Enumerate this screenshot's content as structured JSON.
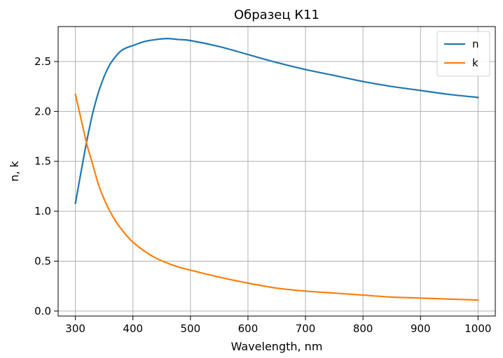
{
  "chart_data": {
    "type": "line",
    "title": "Образец К11",
    "xlabel": "Wavelength, nm",
    "ylabel": "n, k",
    "xlim": [
      270,
      1030
    ],
    "ylim": [
      -0.05,
      2.85
    ],
    "xticks": [
      300,
      400,
      500,
      600,
      700,
      800,
      900,
      1000
    ],
    "xtick_labels": [
      "300",
      "400",
      "500",
      "600",
      "700",
      "800",
      "900",
      "1000"
    ],
    "yticks": [
      0.0,
      0.5,
      1.0,
      1.5,
      2.0,
      2.5
    ],
    "ytick_labels": [
      "0.0",
      "0.5",
      "1.0",
      "1.5",
      "2.0",
      "2.5"
    ],
    "grid": true,
    "legend_position": "top-right",
    "x": [
      300,
      310,
      320,
      330,
      340,
      350,
      360,
      370,
      380,
      390,
      400,
      420,
      440,
      460,
      480,
      500,
      550,
      600,
      650,
      700,
      750,
      800,
      850,
      900,
      950,
      1000
    ],
    "series": [
      {
        "name": "n",
        "color": "#1f77b4",
        "values": [
          1.08,
          1.4,
          1.71,
          1.98,
          2.19,
          2.35,
          2.47,
          2.55,
          2.61,
          2.64,
          2.66,
          2.7,
          2.72,
          2.73,
          2.72,
          2.71,
          2.65,
          2.57,
          2.49,
          2.42,
          2.36,
          2.3,
          2.25,
          2.21,
          2.17,
          2.14
        ]
      },
      {
        "name": "k",
        "color": "#ff7f0e",
        "values": [
          2.17,
          1.92,
          1.67,
          1.47,
          1.27,
          1.12,
          1.0,
          0.9,
          0.82,
          0.75,
          0.69,
          0.6,
          0.53,
          0.48,
          0.44,
          0.41,
          0.34,
          0.28,
          0.23,
          0.2,
          0.18,
          0.16,
          0.14,
          0.13,
          0.12,
          0.11
        ]
      }
    ]
  }
}
